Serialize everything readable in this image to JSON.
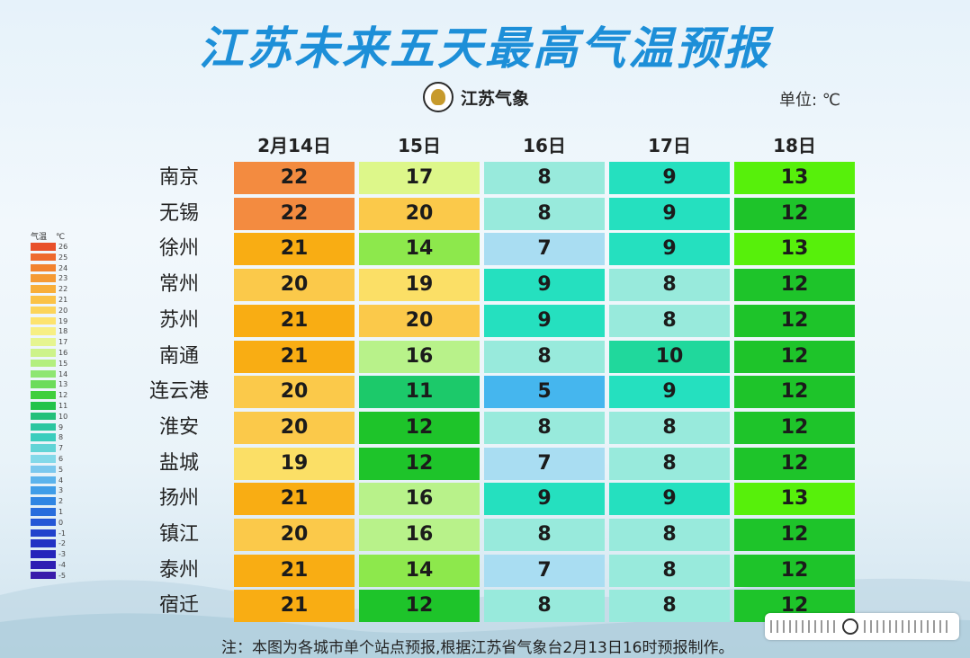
{
  "title": "江苏未来五天最高气温预报",
  "logo_text": "江苏气象",
  "unit": "单位: ℃",
  "days": [
    "2月14日",
    "15日",
    "16日",
    "17日",
    "18日"
  ],
  "rows": [
    {
      "city": "南京",
      "temps": [
        "22",
        "17",
        "8",
        "9",
        "13"
      ]
    },
    {
      "city": "无锡",
      "temps": [
        "22",
        "20",
        "8",
        "9",
        "12"
      ]
    },
    {
      "city": "徐州",
      "temps": [
        "21",
        "14",
        "7",
        "9",
        "13"
      ]
    },
    {
      "city": "常州",
      "temps": [
        "20",
        "19",
        "9",
        "8",
        "12"
      ]
    },
    {
      "city": "苏州",
      "temps": [
        "21",
        "20",
        "9",
        "8",
        "12"
      ]
    },
    {
      "city": "南通",
      "temps": [
        "21",
        "16",
        "8",
        "10",
        "12"
      ]
    },
    {
      "city": "连云港",
      "temps": [
        "20",
        "11",
        "5",
        "9",
        "12"
      ]
    },
    {
      "city": "淮安",
      "temps": [
        "20",
        "12",
        "8",
        "8",
        "12"
      ]
    },
    {
      "city": "盐城",
      "temps": [
        "19",
        "12",
        "7",
        "8",
        "12"
      ]
    },
    {
      "city": "扬州",
      "temps": [
        "21",
        "16",
        "9",
        "9",
        "13"
      ]
    },
    {
      "city": "镇江",
      "temps": [
        "20",
        "16",
        "8",
        "8",
        "12"
      ]
    },
    {
      "city": "泰州",
      "temps": [
        "21",
        "14",
        "7",
        "8",
        "12"
      ]
    },
    {
      "city": "宿迁",
      "temps": [
        "21",
        "12",
        "8",
        "8",
        "12"
      ]
    }
  ],
  "legend": {
    "title": "气温",
    "unit": "℃",
    "labels": [
      "26",
      "25",
      "24",
      "23",
      "22",
      "21",
      "20",
      "19",
      "18",
      "17",
      "16",
      "15",
      "14",
      "13",
      "12",
      "11",
      "10",
      "9",
      "8",
      "7",
      "6",
      "5",
      "4",
      "3",
      "2",
      "1",
      "0",
      "-1",
      "-2",
      "-3",
      "-4",
      "-5"
    ]
  },
  "note": "注：本图为各城市单个站点预报,根据江苏省气象台2月13日16时预报制作。",
  "color_scale": {
    "5": "#45b6ee",
    "7": "#a9ddf2",
    "8": "#98eadc",
    "9": "#25e0bf",
    "10": "#20d89c",
    "11": "#1cc96a",
    "12": "#1ec42a",
    "13": "#57f00b",
    "14": "#8de84c",
    "16": "#b8f28a",
    "17": "#ddf78a",
    "19": "#fbdf66",
    "20": "#fbc94a",
    "21": "#f9ad13",
    "22": "#f38b40"
  }
}
